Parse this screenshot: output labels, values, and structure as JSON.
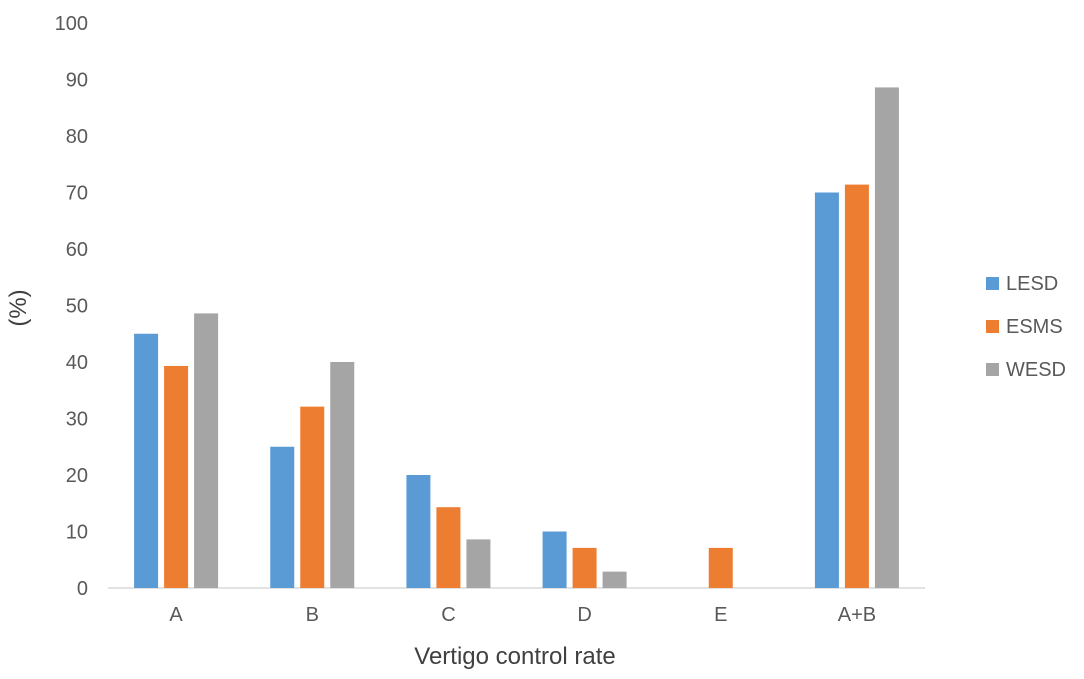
{
  "chart_data": {
    "type": "bar",
    "categories": [
      "A",
      "B",
      "C",
      "D",
      "E",
      "A+B"
    ],
    "series": [
      {
        "name": "LESD",
        "color": "#5b9bd5",
        "values": [
          45,
          25,
          20,
          10,
          0,
          70
        ]
      },
      {
        "name": "ESMS",
        "color": "#ed7d31",
        "values": [
          39.3,
          32.1,
          14.3,
          7.1,
          7.1,
          71.4
        ]
      },
      {
        "name": "WESD",
        "color": "#a5a5a5",
        "values": [
          48.6,
          40,
          8.6,
          2.9,
          0,
          88.6
        ]
      }
    ],
    "xlabel": "Vertigo control rate",
    "ylabel": "(%)",
    "ylim": [
      0,
      100
    ],
    "yticks": [
      0,
      10,
      20,
      30,
      40,
      50,
      60,
      70,
      80,
      90,
      100
    ],
    "legend_position": "right"
  }
}
